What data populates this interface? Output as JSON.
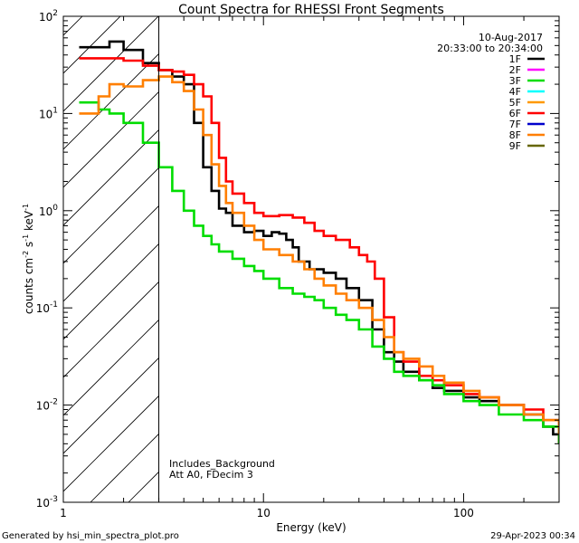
{
  "chart_data": {
    "type": "line",
    "title": "Count Spectra for RHESSI Front Segments",
    "xlabel": "Energy (keV)",
    "ylabel": {
      "base": "counts cm",
      "exp1": "-2",
      "mid": " s",
      "exp2": "-1",
      "mid2": " keV",
      "exp3": "-1"
    },
    "xscale": "log",
    "yscale": "log",
    "xlim": [
      1,
      300
    ],
    "ylim": [
      0.001,
      100
    ],
    "x_ticks": [
      {
        "value": 1,
        "label": "1"
      },
      {
        "value": 10,
        "label": "10"
      },
      {
        "value": 100,
        "label": "100"
      }
    ],
    "y_ticks": [
      {
        "value": 0.001,
        "base": "10",
        "exp": "-3"
      },
      {
        "value": 0.01,
        "base": "10",
        "exp": "-2"
      },
      {
        "value": 0.1,
        "base": "10",
        "exp": "-1"
      },
      {
        "value": 1,
        "base": "10",
        "exp": "0"
      },
      {
        "value": 10,
        "base": "10",
        "exp": "1"
      },
      {
        "value": 100,
        "base": "10",
        "exp": "2"
      }
    ],
    "hatched_region": {
      "x_from": 1,
      "x_to": 3,
      "note": "attenuator / low-energy exclusion shown hatched"
    },
    "date": "10-Aug-2017",
    "time_range": "20:33:00 to 20:34:00",
    "legend": [
      {
        "label": "1F",
        "color": "#000000"
      },
      {
        "label": "2F",
        "color": "#ff00ff"
      },
      {
        "label": "3F",
        "color": "#00dd00"
      },
      {
        "label": "4F",
        "color": "#00ffff"
      },
      {
        "label": "5F",
        "color": "#ff9900"
      },
      {
        "label": "6F",
        "color": "#ff0000"
      },
      {
        "label": "7F",
        "color": "#0000cc"
      },
      {
        "label": "8F",
        "color": "#ff7f00"
      },
      {
        "label": "9F",
        "color": "#666600"
      }
    ],
    "annotations": [
      "Includes_Background",
      "Att A0, FDecim 3"
    ],
    "series": [
      {
        "name": "1F",
        "color": "#000000",
        "points": [
          [
            1.2,
            48
          ],
          [
            1.5,
            48
          ],
          [
            1.7,
            55
          ],
          [
            2.0,
            45
          ],
          [
            2.5,
            33
          ],
          [
            3.0,
            28
          ],
          [
            3.5,
            24
          ],
          [
            4.0,
            20
          ],
          [
            4.5,
            8
          ],
          [
            5.0,
            2.8
          ],
          [
            5.5,
            1.6
          ],
          [
            6.0,
            1.05
          ],
          [
            6.5,
            0.95
          ],
          [
            7.0,
            0.7
          ],
          [
            8.0,
            0.6
          ],
          [
            9.0,
            0.62
          ],
          [
            10,
            0.55
          ],
          [
            11,
            0.6
          ],
          [
            12,
            0.58
          ],
          [
            13,
            0.5
          ],
          [
            14,
            0.42
          ],
          [
            15,
            0.3
          ],
          [
            17,
            0.25
          ],
          [
            20,
            0.23
          ],
          [
            23,
            0.2
          ],
          [
            26,
            0.16
          ],
          [
            30,
            0.12
          ],
          [
            35,
            0.06
          ],
          [
            40,
            0.035
          ],
          [
            45,
            0.028
          ],
          [
            50,
            0.022
          ],
          [
            60,
            0.018
          ],
          [
            70,
            0.015
          ],
          [
            80,
            0.014
          ],
          [
            100,
            0.012
          ],
          [
            120,
            0.011
          ],
          [
            150,
            0.01
          ],
          [
            200,
            0.008
          ],
          [
            250,
            0.006
          ],
          [
            280,
            0.005
          ],
          [
            300,
            0.004
          ]
        ]
      },
      {
        "name": "6F",
        "color": "#ff0000",
        "points": [
          [
            1.2,
            37
          ],
          [
            1.5,
            37
          ],
          [
            2.0,
            35
          ],
          [
            2.5,
            31
          ],
          [
            3.0,
            28
          ],
          [
            3.5,
            27
          ],
          [
            4.0,
            25
          ],
          [
            4.5,
            20
          ],
          [
            5.0,
            15
          ],
          [
            5.5,
            8
          ],
          [
            6.0,
            3.5
          ],
          [
            6.5,
            2.0
          ],
          [
            7.0,
            1.5
          ],
          [
            8.0,
            1.2
          ],
          [
            9.0,
            0.95
          ],
          [
            10,
            0.88
          ],
          [
            12,
            0.9
          ],
          [
            14,
            0.85
          ],
          [
            16,
            0.75
          ],
          [
            18,
            0.62
          ],
          [
            20,
            0.55
          ],
          [
            23,
            0.5
          ],
          [
            27,
            0.42
          ],
          [
            30,
            0.35
          ],
          [
            33,
            0.3
          ],
          [
            36,
            0.2
          ],
          [
            40,
            0.08
          ],
          [
            45,
            0.035
          ],
          [
            50,
            0.028
          ],
          [
            60,
            0.02
          ],
          [
            70,
            0.018
          ],
          [
            80,
            0.016
          ],
          [
            100,
            0.013
          ],
          [
            120,
            0.012
          ],
          [
            150,
            0.01
          ],
          [
            200,
            0.009
          ],
          [
            250,
            0.007
          ],
          [
            300,
            0.004
          ]
        ]
      },
      {
        "name": "3F",
        "color": "#00dd00",
        "points": [
          [
            1.2,
            13
          ],
          [
            1.5,
            11
          ],
          [
            1.7,
            10
          ],
          [
            2.0,
            8
          ],
          [
            2.5,
            5
          ],
          [
            3.0,
            2.8
          ],
          [
            3.5,
            1.6
          ],
          [
            4.0,
            1.0
          ],
          [
            4.5,
            0.7
          ],
          [
            5.0,
            0.55
          ],
          [
            5.5,
            0.45
          ],
          [
            6.0,
            0.38
          ],
          [
            7.0,
            0.32
          ],
          [
            8.0,
            0.27
          ],
          [
            9.0,
            0.24
          ],
          [
            10,
            0.2
          ],
          [
            12,
            0.16
          ],
          [
            14,
            0.14
          ],
          [
            16,
            0.13
          ],
          [
            18,
            0.12
          ],
          [
            20,
            0.1
          ],
          [
            23,
            0.085
          ],
          [
            26,
            0.075
          ],
          [
            30,
            0.06
          ],
          [
            35,
            0.04
          ],
          [
            40,
            0.03
          ],
          [
            45,
            0.022
          ],
          [
            50,
            0.02
          ],
          [
            60,
            0.018
          ],
          [
            70,
            0.016
          ],
          [
            80,
            0.013
          ],
          [
            100,
            0.011
          ],
          [
            120,
            0.01
          ],
          [
            150,
            0.008
          ],
          [
            200,
            0.007
          ],
          [
            250,
            0.006
          ],
          [
            300,
            0.004
          ]
        ]
      },
      {
        "name": "8F",
        "color": "#ff7f00",
        "points": [
          [
            1.2,
            10
          ],
          [
            1.5,
            15
          ],
          [
            1.7,
            20
          ],
          [
            2.0,
            19
          ],
          [
            2.5,
            22
          ],
          [
            3.0,
            24
          ],
          [
            3.5,
            21
          ],
          [
            4.0,
            17
          ],
          [
            4.5,
            11
          ],
          [
            5.0,
            6
          ],
          [
            5.5,
            3
          ],
          [
            6.0,
            1.8
          ],
          [
            6.5,
            1.2
          ],
          [
            7.0,
            0.95
          ],
          [
            8.0,
            0.7
          ],
          [
            9.0,
            0.5
          ],
          [
            10,
            0.4
          ],
          [
            12,
            0.35
          ],
          [
            14,
            0.3
          ],
          [
            16,
            0.25
          ],
          [
            18,
            0.2
          ],
          [
            20,
            0.17
          ],
          [
            23,
            0.14
          ],
          [
            26,
            0.12
          ],
          [
            30,
            0.1
          ],
          [
            35,
            0.075
          ],
          [
            40,
            0.05
          ],
          [
            45,
            0.035
          ],
          [
            50,
            0.03
          ],
          [
            60,
            0.025
          ],
          [
            70,
            0.02
          ],
          [
            80,
            0.017
          ],
          [
            100,
            0.014
          ],
          [
            120,
            0.012
          ],
          [
            150,
            0.01
          ],
          [
            200,
            0.008
          ],
          [
            250,
            0.007
          ],
          [
            300,
            0.005
          ]
        ]
      }
    ]
  },
  "footer": {
    "generated_by": "Generated by hsi_min_spectra_plot.pro",
    "timestamp": "29-Apr-2023 00:34"
  }
}
